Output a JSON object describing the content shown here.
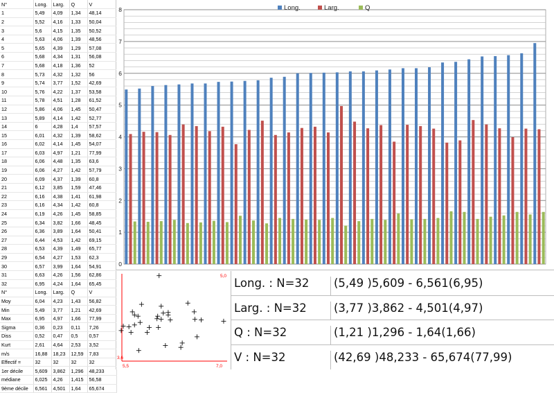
{
  "sheet": {
    "headers": [
      "N°",
      "Long.",
      "Larg.",
      "Q",
      "V"
    ],
    "rows": [
      [
        "1",
        "5,49",
        "4,09",
        "1,34",
        "48,14"
      ],
      [
        "2",
        "5,52",
        "4,16",
        "1,33",
        "50,04"
      ],
      [
        "3",
        "5,6",
        "4,15",
        "1,35",
        "50,52"
      ],
      [
        "4",
        "5,63",
        "4,06",
        "1,39",
        "48,56"
      ],
      [
        "5",
        "5,65",
        "4,39",
        "1,29",
        "57,08"
      ],
      [
        "6",
        "5,68",
        "4,34",
        "1,31",
        "56,08"
      ],
      [
        "7",
        "5,68",
        "4,18",
        "1,36",
        "52"
      ],
      [
        "8",
        "5,73",
        "4,32",
        "1,32",
        "56"
      ],
      [
        "9",
        "5,74",
        "3,77",
        "1,52",
        "42,69"
      ],
      [
        "10",
        "5,76",
        "4,22",
        "1,37",
        "53,58"
      ],
      [
        "11",
        "5,78",
        "4,51",
        "1,28",
        "61,52"
      ],
      [
        "12",
        "5,86",
        "4,06",
        "1,45",
        "50,47"
      ],
      [
        "13",
        "5,89",
        "4,14",
        "1,42",
        "52,77"
      ],
      [
        "14",
        "6",
        "4,28",
        "1,4",
        "57,57"
      ],
      [
        "15",
        "6,01",
        "4,32",
        "1,39",
        "58,62"
      ],
      [
        "16",
        "6,02",
        "4,14",
        "1,45",
        "54,07"
      ],
      [
        "17",
        "6,03",
        "4,97",
        "1,21",
        "77,99"
      ],
      [
        "18",
        "6,06",
        "4,48",
        "1,35",
        "63,6"
      ],
      [
        "19",
        "6,06",
        "4,27",
        "1,42",
        "57,79"
      ],
      [
        "20",
        "6,09",
        "4,37",
        "1,39",
        "60,8"
      ],
      [
        "21",
        "6,12",
        "3,85",
        "1,59",
        "47,46"
      ],
      [
        "22",
        "6,16",
        "4,38",
        "1,41",
        "61,98"
      ],
      [
        "23",
        "6,16",
        "4,34",
        "1,42",
        "60,8"
      ],
      [
        "24",
        "6,19",
        "4,26",
        "1,45",
        "58,85"
      ],
      [
        "25",
        "6,34",
        "3,82",
        "1,66",
        "48,45"
      ],
      [
        "26",
        "6,36",
        "3,89",
        "1,64",
        "50,41"
      ],
      [
        "27",
        "6,44",
        "4,53",
        "1,42",
        "69,15"
      ],
      [
        "28",
        "6,53",
        "4,39",
        "1,49",
        "65,77"
      ],
      [
        "29",
        "6,54",
        "4,27",
        "1,53",
        "62,3"
      ],
      [
        "30",
        "6,57",
        "3,99",
        "1,64",
        "54,91"
      ],
      [
        "31",
        "6,63",
        "4,26",
        "1,56",
        "62,86"
      ],
      [
        "32",
        "6,95",
        "4,24",
        "1,64",
        "65,45"
      ]
    ],
    "stats_header": [
      "N°",
      "Long.",
      "Larg.",
      "Q",
      "V"
    ],
    "stats_rows": [
      [
        "Moy",
        "6,04",
        "4,23",
        "1,43",
        "56,82"
      ],
      [
        "Min",
        "5,49",
        "3,77",
        "1,21",
        "42,69"
      ],
      [
        "Max",
        "6,95",
        "4,97",
        "1,66",
        "77,99"
      ],
      [
        "Sigma",
        "0,36",
        "0,23",
        "0,11",
        "7,26"
      ],
      [
        "Diss",
        "0,52",
        "0,47",
        "0,5",
        "0,57"
      ],
      [
        "Kurt",
        "2,61",
        "4,64",
        "2,53",
        "3,52"
      ],
      [
        "m/s",
        "16,88",
        "18,23",
        "12,59",
        "7,83"
      ],
      [
        "Effectif =",
        "32",
        "32",
        "32",
        "32"
      ],
      [
        "1er décile",
        "5,609",
        "3,862",
        "1,296",
        "48,233"
      ],
      [
        "médiane",
        "6,025",
        "4,26",
        "1,415",
        "56,58"
      ],
      [
        "9ème décile",
        "6,561",
        "4,501",
        "1,64",
        "65,674"
      ]
    ]
  },
  "chart_data": [
    {
      "type": "bar",
      "title": "",
      "xlabel": "",
      "ylabel": "",
      "ylim": [
        0,
        8
      ],
      "yticks": [
        "0",
        "1",
        "2",
        "3",
        "4",
        "5",
        "6",
        "7",
        "8"
      ],
      "grid": true,
      "legend_position": "top",
      "categories": [
        "1",
        "2",
        "3",
        "4",
        "5",
        "6",
        "7",
        "8",
        "9",
        "10",
        "11",
        "12",
        "13",
        "14",
        "15",
        "16",
        "17",
        "18",
        "19",
        "20",
        "21",
        "22",
        "23",
        "24",
        "25",
        "26",
        "27",
        "28",
        "29",
        "30",
        "31",
        "32"
      ],
      "series": [
        {
          "name": "Long.",
          "color": "#4f81bd",
          "values": [
            5.49,
            5.52,
            5.6,
            5.63,
            5.65,
            5.68,
            5.68,
            5.73,
            5.74,
            5.76,
            5.78,
            5.86,
            5.89,
            6,
            6.01,
            6.02,
            6.03,
            6.06,
            6.06,
            6.09,
            6.12,
            6.16,
            6.16,
            6.19,
            6.34,
            6.36,
            6.44,
            6.53,
            6.54,
            6.57,
            6.63,
            6.95
          ]
        },
        {
          "name": "Larg.",
          "color": "#c0504d",
          "values": [
            4.09,
            4.16,
            4.15,
            4.06,
            4.39,
            4.34,
            4.18,
            4.32,
            3.77,
            4.22,
            4.51,
            4.06,
            4.14,
            4.28,
            4.32,
            4.14,
            4.97,
            4.48,
            4.27,
            4.37,
            3.85,
            4.38,
            4.34,
            4.26,
            3.82,
            3.89,
            4.53,
            4.39,
            4.27,
            3.99,
            4.26,
            4.24
          ]
        },
        {
          "name": "Q",
          "color": "#9bbb59",
          "values": [
            1.34,
            1.33,
            1.35,
            1.39,
            1.29,
            1.31,
            1.36,
            1.32,
            1.52,
            1.37,
            1.28,
            1.45,
            1.42,
            1.4,
            1.39,
            1.45,
            1.21,
            1.35,
            1.42,
            1.39,
            1.59,
            1.41,
            1.42,
            1.45,
            1.66,
            1.64,
            1.42,
            1.49,
            1.53,
            1.64,
            1.56,
            1.64
          ]
        }
      ]
    },
    {
      "type": "scatter",
      "title": "",
      "xlabel": "",
      "ylabel": "",
      "xlim": [
        5.5,
        7.0
      ],
      "ylim": [
        3.6,
        5.0
      ],
      "xtick_labels": [
        "5,5",
        "7,0"
      ],
      "ytick_labels": [
        "5,0",
        "3,6"
      ],
      "axis_color": "#ff0000",
      "marker": "+",
      "x": [
        5.49,
        5.52,
        5.6,
        5.63,
        5.65,
        5.68,
        5.68,
        5.73,
        5.74,
        5.76,
        5.78,
        5.86,
        5.89,
        6,
        6.01,
        6.02,
        6.03,
        6.06,
        6.06,
        6.09,
        6.12,
        6.16,
        6.16,
        6.19,
        6.34,
        6.36,
        6.44,
        6.53,
        6.54,
        6.57,
        6.63,
        6.95
      ],
      "y": [
        4.09,
        4.16,
        4.15,
        4.06,
        4.39,
        4.34,
        4.18,
        4.32,
        3.77,
        4.22,
        4.51,
        4.06,
        4.14,
        4.28,
        4.32,
        4.14,
        4.97,
        4.48,
        4.27,
        4.37,
        3.85,
        4.38,
        4.34,
        4.26,
        3.82,
        3.89,
        4.53,
        4.39,
        4.27,
        3.99,
        4.26,
        4.24
      ]
    }
  ],
  "stats_panel": [
    {
      "name": "Long. : N=32",
      "range": "(5,49 )5,609 - 6,561(6,95)"
    },
    {
      "name": "Larg. : N=32",
      "range": "(3,77 )3,862 - 4,501(4,97)"
    },
    {
      "name": "Q : N=32",
      "range": "(1,21 )1,296 - 1,64(1,66)"
    },
    {
      "name": "V : N=32",
      "range": "(42,69 )48,233 - 65,674(77,99)"
    }
  ]
}
